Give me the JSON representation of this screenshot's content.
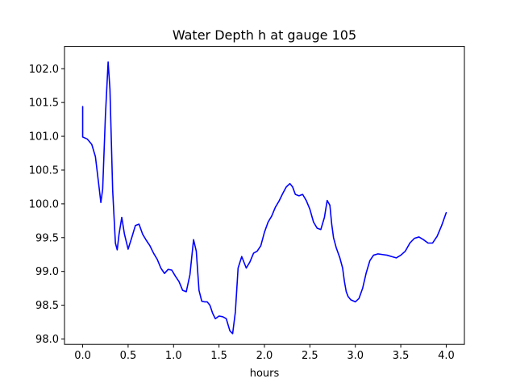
{
  "chart_data": {
    "type": "line",
    "title": "Water Depth h at gauge 105",
    "xlabel": "hours",
    "ylabel": "",
    "xlim": [
      -0.2,
      4.2
    ],
    "ylim": [
      97.92,
      102.33
    ],
    "xticks": [
      0.0,
      0.5,
      1.0,
      1.5,
      2.0,
      2.5,
      3.0,
      3.5,
      4.0
    ],
    "xtick_labels": [
      "0.0",
      "0.5",
      "1.0",
      "1.5",
      "2.0",
      "2.5",
      "3.0",
      "3.5",
      "4.0"
    ],
    "yticks": [
      98.0,
      98.5,
      99.0,
      99.5,
      100.0,
      100.5,
      101.0,
      101.5,
      102.0
    ],
    "ytick_labels": [
      "98.0",
      "98.5",
      "99.0",
      "99.5",
      "100.0",
      "100.5",
      "101.0",
      "101.5",
      "102.0"
    ],
    "grid": false,
    "legend": "none",
    "series": [
      {
        "color": "#0000ff",
        "x": [
          0.0,
          0.0,
          0.0,
          0.05,
          0.1,
          0.14,
          0.18,
          0.2,
          0.22,
          0.25,
          0.28,
          0.3,
          0.33,
          0.36,
          0.38,
          0.4,
          0.43,
          0.46,
          0.5,
          0.54,
          0.58,
          0.62,
          0.66,
          0.7,
          0.74,
          0.78,
          0.82,
          0.86,
          0.9,
          0.94,
          0.98,
          1.02,
          1.06,
          1.1,
          1.14,
          1.18,
          1.22,
          1.25,
          1.28,
          1.31,
          1.34,
          1.37,
          1.4,
          1.43,
          1.46,
          1.5,
          1.54,
          1.58,
          1.62,
          1.65,
          1.68,
          1.71,
          1.75,
          1.8,
          1.84,
          1.88,
          1.92,
          1.96,
          2.0,
          2.04,
          2.08,
          2.12,
          2.16,
          2.2,
          2.24,
          2.28,
          2.31,
          2.34,
          2.38,
          2.42,
          2.46,
          2.5,
          2.54,
          2.58,
          2.62,
          2.66,
          2.69,
          2.72,
          2.74,
          2.76,
          2.79,
          2.83,
          2.86,
          2.88,
          2.9,
          2.92,
          2.95,
          3.0,
          3.04,
          3.08,
          3.12,
          3.16,
          3.2,
          3.25,
          3.3,
          3.35,
          3.4,
          3.45,
          3.5,
          3.55,
          3.6,
          3.65,
          3.7,
          3.75,
          3.8,
          3.85,
          3.9,
          3.95,
          4.0
        ],
        "y": [
          101.44,
          101.0,
          100.99,
          100.96,
          100.88,
          100.7,
          100.25,
          100.02,
          100.22,
          101.3,
          102.1,
          101.7,
          100.2,
          99.42,
          99.32,
          99.55,
          99.8,
          99.55,
          99.33,
          99.5,
          99.68,
          99.7,
          99.55,
          99.46,
          99.38,
          99.27,
          99.18,
          99.05,
          98.97,
          99.03,
          99.02,
          98.93,
          98.85,
          98.72,
          98.7,
          98.95,
          99.47,
          99.3,
          98.72,
          98.56,
          98.55,
          98.55,
          98.5,
          98.38,
          98.3,
          98.34,
          98.33,
          98.3,
          98.12,
          98.08,
          98.4,
          99.05,
          99.22,
          99.05,
          99.14,
          99.27,
          99.3,
          99.38,
          99.58,
          99.73,
          99.82,
          99.95,
          100.04,
          100.15,
          100.25,
          100.3,
          100.25,
          100.14,
          100.12,
          100.14,
          100.05,
          99.92,
          99.73,
          99.64,
          99.62,
          99.8,
          100.05,
          99.98,
          99.7,
          99.5,
          99.35,
          99.2,
          99.05,
          98.85,
          98.7,
          98.63,
          98.58,
          98.55,
          98.6,
          98.75,
          98.98,
          99.16,
          99.24,
          99.26,
          99.25,
          99.24,
          99.22,
          99.2,
          99.24,
          99.3,
          99.42,
          99.49,
          99.51,
          99.47,
          99.42,
          99.42,
          99.52,
          99.68,
          99.87
        ]
      }
    ]
  }
}
